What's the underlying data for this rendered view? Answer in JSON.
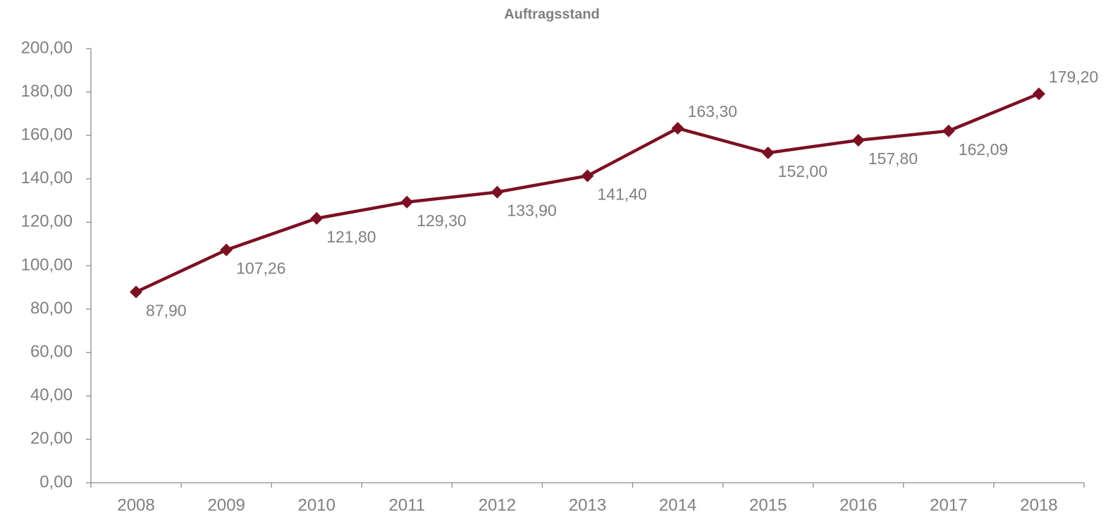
{
  "chart_data": {
    "type": "line",
    "title": "Auftragsstand",
    "categories": [
      "2008",
      "2009",
      "2010",
      "2011",
      "2012",
      "2013",
      "2014",
      "2015",
      "2016",
      "2017",
      "2018"
    ],
    "series": [
      {
        "color": "#7b1022",
        "values": [
          87.9,
          107.26,
          121.8,
          129.3,
          133.9,
          141.4,
          163.3,
          152.0,
          157.8,
          162.09,
          179.2
        ],
        "value_labels": [
          "87,90",
          "107,26",
          "121,80",
          "129,30",
          "133,90",
          "141,40",
          "163,30",
          "152,00",
          "157,80",
          "162,09",
          "179,20"
        ]
      }
    ],
    "ylim": [
      0,
      200
    ],
    "yticks": [
      {
        "value": 0,
        "label": "0,00"
      },
      {
        "value": 20,
        "label": "20,00"
      },
      {
        "value": 40,
        "label": "40,00"
      },
      {
        "value": 60,
        "label": "60,00"
      },
      {
        "value": 80,
        "label": "80,00"
      },
      {
        "value": 100,
        "label": "100,00"
      },
      {
        "value": 120,
        "label": "120,00"
      },
      {
        "value": 140,
        "label": "140,00"
      },
      {
        "value": 160,
        "label": "160,00"
      },
      {
        "value": 180,
        "label": "180,00"
      },
      {
        "value": 200,
        "label": "200,00"
      }
    ]
  }
}
